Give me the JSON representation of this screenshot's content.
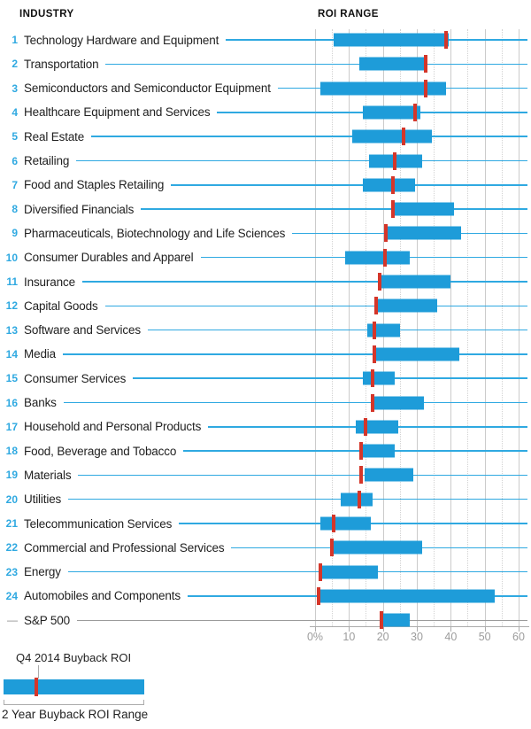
{
  "header": {
    "industry": "INDUSTRY",
    "roi_range": "ROI RANGE"
  },
  "axis": {
    "tick_labels": [
      "0%",
      "10",
      "20",
      "30",
      "40",
      "50",
      "60"
    ],
    "tick_values": [
      0,
      10,
      20,
      30,
      40,
      50,
      60
    ],
    "minor_values": [
      5,
      15,
      25,
      35,
      45,
      55
    ]
  },
  "legend": {
    "marker_label": "Q4 2014 Buyback ROI",
    "range_label": "2 Year Buyback ROI Range"
  },
  "colors": {
    "bar": "#1e9cd9",
    "marker": "#d4362a",
    "leader": "#2fa9e1",
    "rank_number": "#2fa9e1",
    "benchmark_gray": "#9b9b9b",
    "grid": "#cbcbcb",
    "axis_text": "#9c9c9c"
  },
  "chart_data": {
    "type": "bar",
    "subtype": "horizontal_range_bar",
    "orientation": "horizontal",
    "xlabel": "ROI RANGE",
    "xlim": [
      0,
      60
    ],
    "x_tick_labels": [
      "0%",
      "10",
      "20",
      "30",
      "40",
      "50",
      "60"
    ],
    "grid": "vertical; solid at multiples of 10, dotted at multiples of 5",
    "legend_position": "bottom-left",
    "series": [
      {
        "name": "2 Year Buyback ROI Range",
        "kind": "range_bar"
      },
      {
        "name": "Q4 2014 Buyback ROI",
        "kind": "marker"
      }
    ],
    "rows": [
      {
        "rank": "1",
        "label": "Technology Hardware and Equipment",
        "range_low": 5.5,
        "range_high": 39.5,
        "q4_2014_roi": 38.5
      },
      {
        "rank": "2",
        "label": "Transportation",
        "range_low": 13,
        "range_high": 33,
        "q4_2014_roi": 32.5
      },
      {
        "rank": "3",
        "label": "Semiconductors and Semiconductor Equipment",
        "range_low": 1.5,
        "range_high": 38.5,
        "q4_2014_roi": 32.5
      },
      {
        "rank": "4",
        "label": "Healthcare Equipment and Services",
        "range_low": 14,
        "range_high": 31,
        "q4_2014_roi": 29.5
      },
      {
        "rank": "5",
        "label": "Real Estate",
        "range_low": 11,
        "range_high": 34.5,
        "q4_2014_roi": 26
      },
      {
        "rank": "6",
        "label": "Retailing",
        "range_low": 16,
        "range_high": 31.5,
        "q4_2014_roi": 23.5
      },
      {
        "rank": "7",
        "label": "Food and Staples Retailing",
        "range_low": 14,
        "range_high": 29.5,
        "q4_2014_roi": 23
      },
      {
        "rank": "8",
        "label": "Diversified Financials",
        "range_low": 23,
        "range_high": 41,
        "q4_2014_roi": 23
      },
      {
        "rank": "9",
        "label": "Pharmaceuticals, Biotechnology and Life Sciences",
        "range_low": 21.5,
        "range_high": 43,
        "q4_2014_roi": 21
      },
      {
        "rank": "10",
        "label": "Consumer Durables and Apparel",
        "range_low": 9,
        "range_high": 28,
        "q4_2014_roi": 20.5
      },
      {
        "rank": "11",
        "label": "Insurance",
        "range_low": 19.5,
        "range_high": 40,
        "q4_2014_roi": 19
      },
      {
        "rank": "12",
        "label": "Capital Goods",
        "range_low": 18,
        "range_high": 36,
        "q4_2014_roi": 18
      },
      {
        "rank": "13",
        "label": "Software and Services",
        "range_low": 15.5,
        "range_high": 25,
        "q4_2014_roi": 17.5
      },
      {
        "rank": "14",
        "label": "Media",
        "range_low": 17.5,
        "range_high": 42.5,
        "q4_2014_roi": 17.5
      },
      {
        "rank": "15",
        "label": "Consumer Services",
        "range_low": 14,
        "range_high": 23.5,
        "q4_2014_roi": 17
      },
      {
        "rank": "16",
        "label": "Banks",
        "range_low": 17.5,
        "range_high": 32,
        "q4_2014_roi": 17
      },
      {
        "rank": "17",
        "label": "Household and Personal Products",
        "range_low": 12,
        "range_high": 24.5,
        "q4_2014_roi": 15
      },
      {
        "rank": "18",
        "label": "Food, Beverage and Tobacco",
        "range_low": 13,
        "range_high": 23.5,
        "q4_2014_roi": 13.5
      },
      {
        "rank": "19",
        "label": "Materials",
        "range_low": 14.5,
        "range_high": 29,
        "q4_2014_roi": 13.5
      },
      {
        "rank": "20",
        "label": "Utilities",
        "range_low": 7.5,
        "range_high": 17,
        "q4_2014_roi": 13
      },
      {
        "rank": "21",
        "label": "Telecommunication Services",
        "range_low": 1.5,
        "range_high": 16.5,
        "q4_2014_roi": 5.5
      },
      {
        "rank": "22",
        "label": "Commercial and Professional Services",
        "range_low": 5,
        "range_high": 31.5,
        "q4_2014_roi": 5
      },
      {
        "rank": "23",
        "label": "Energy",
        "range_low": 2,
        "range_high": 18.5,
        "q4_2014_roi": 1.5
      },
      {
        "rank": "24",
        "label": "Automobiles and Components",
        "range_low": 1,
        "range_high": 53,
        "q4_2014_roi": 1
      },
      {
        "rank": "—",
        "label": "S&P 500",
        "range_low": 20,
        "range_high": 28,
        "q4_2014_roi": 19.5,
        "benchmark": true
      }
    ]
  }
}
